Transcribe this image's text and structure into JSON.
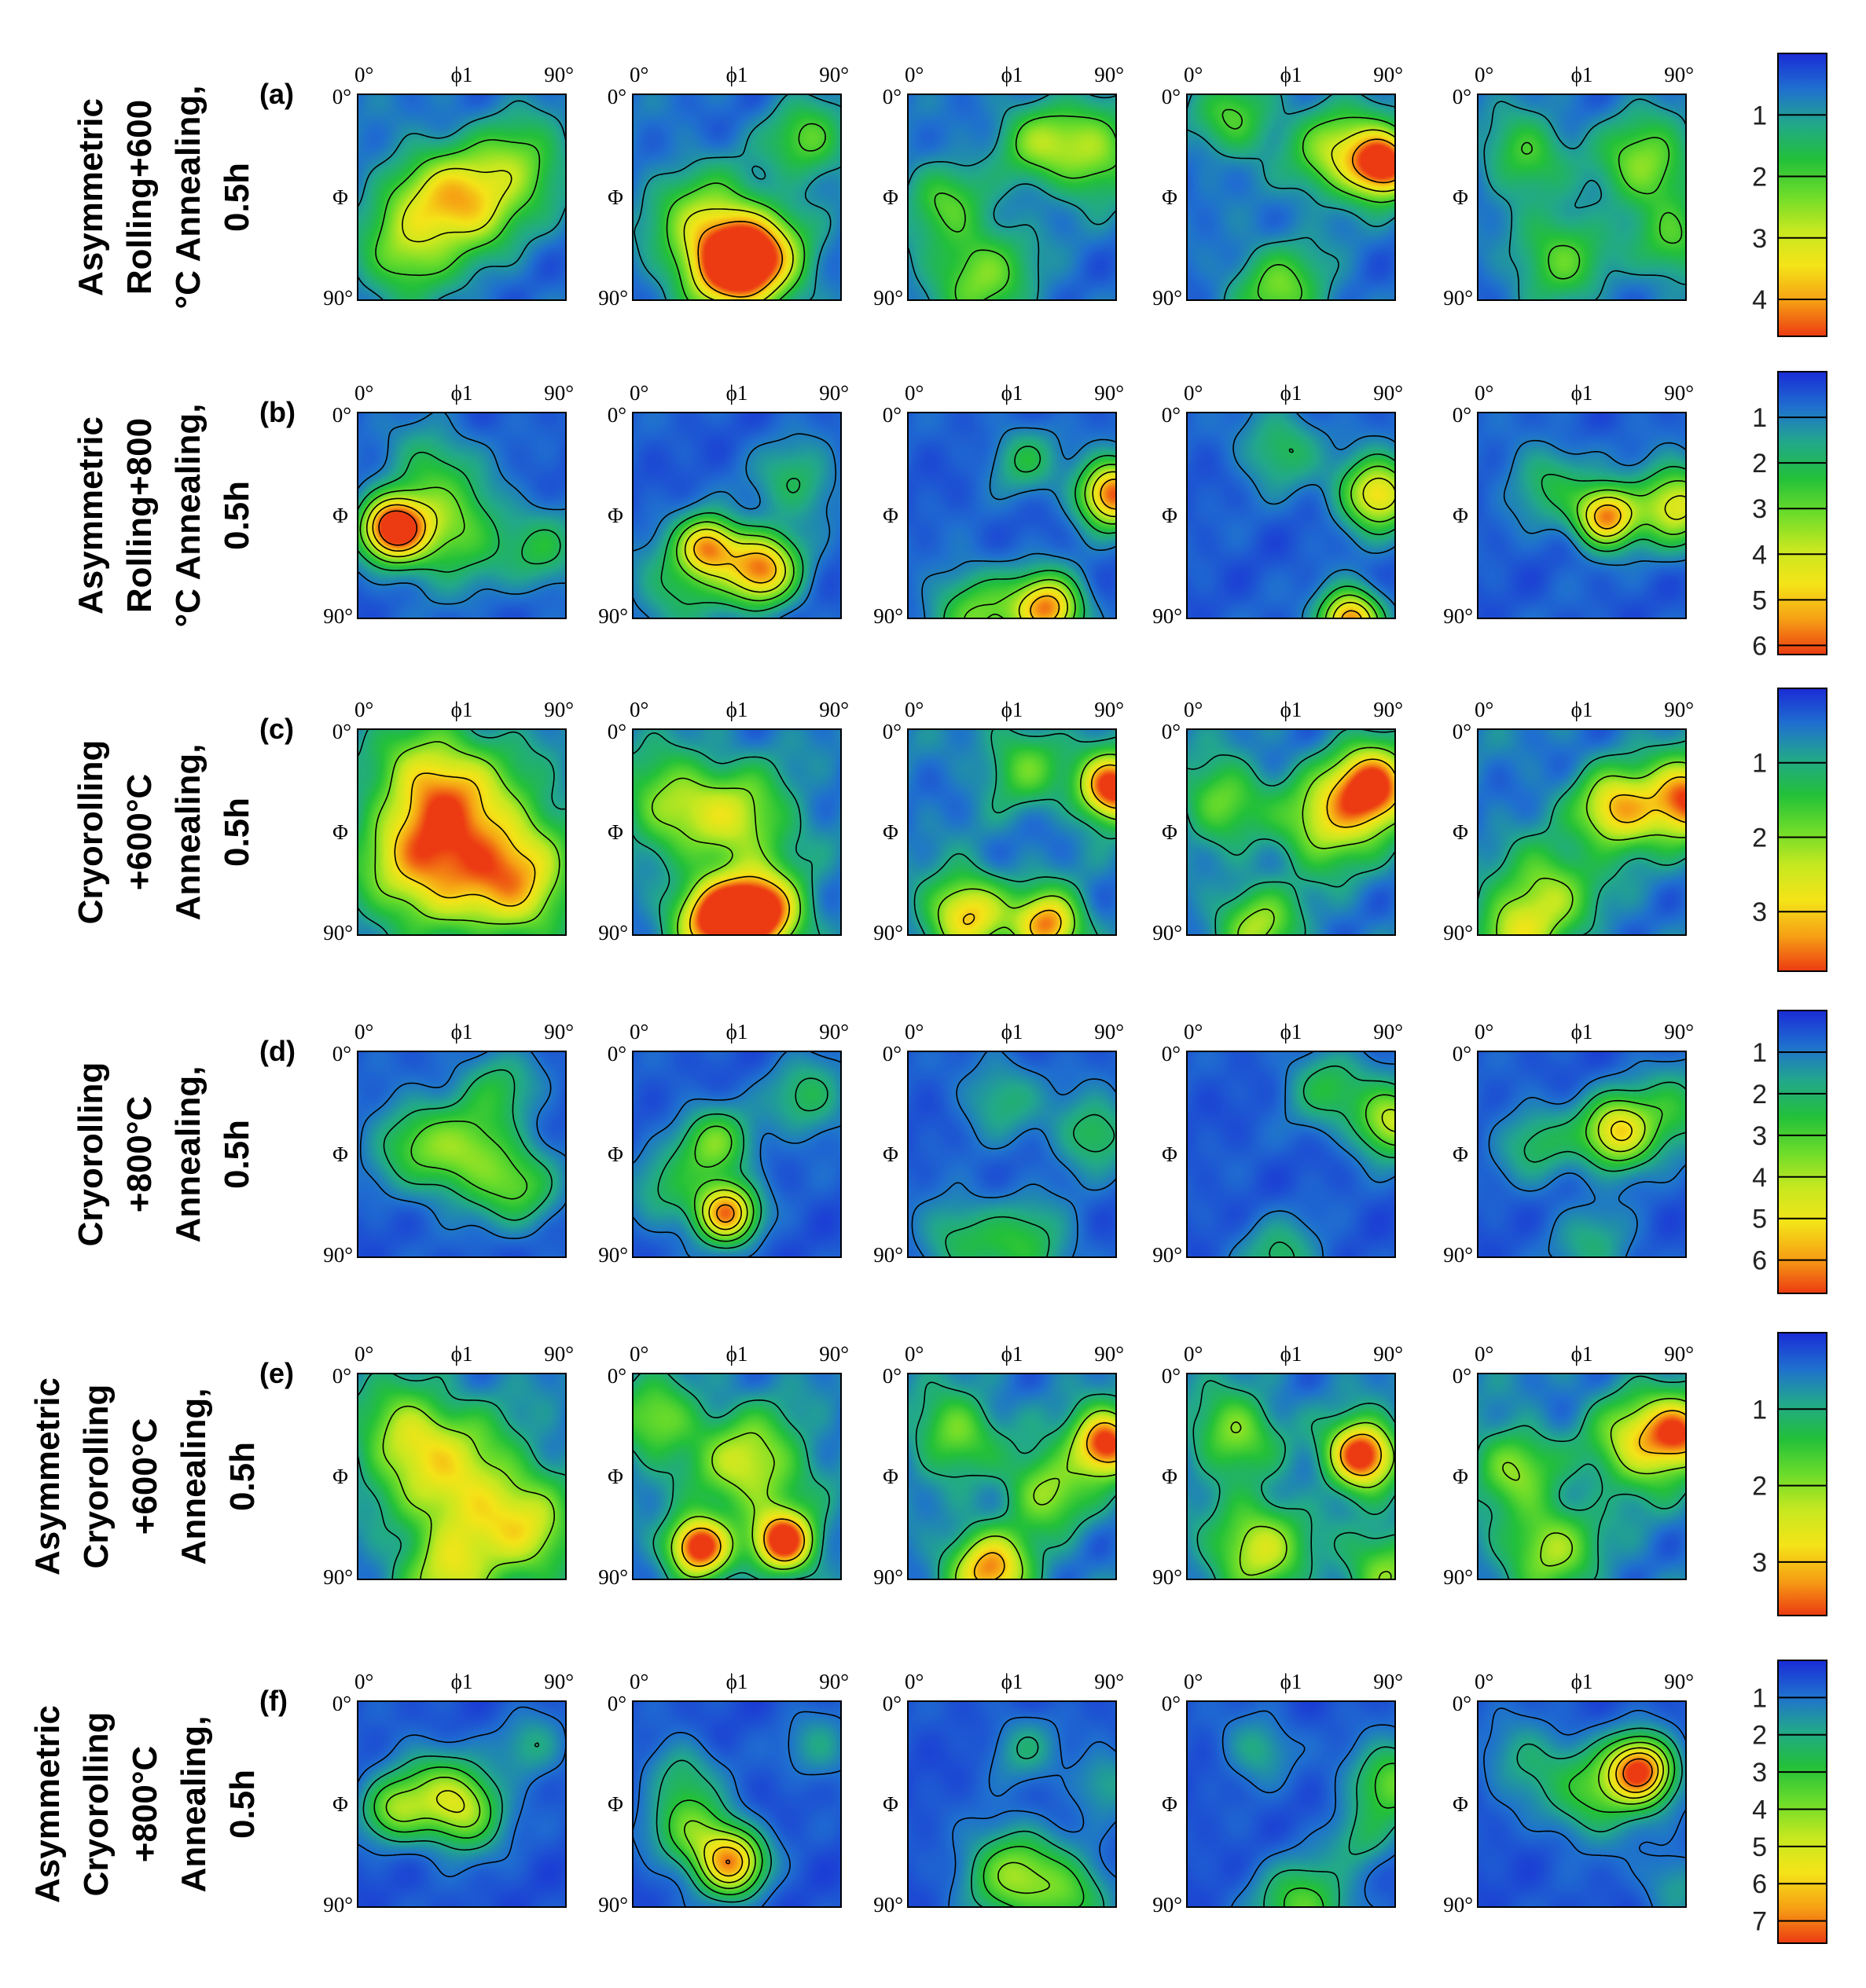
{
  "figure": {
    "description_free": true,
    "axis_labels": {
      "top_left": "0°",
      "top_mid": "ϕ1",
      "top_right": "90°",
      "left_top": "0°",
      "left_mid": "Φ",
      "left_bottom": "90°"
    }
  },
  "chart_data": {
    "type": "heatmap",
    "x_axis": {
      "label": "ϕ1",
      "range": [
        0,
        90
      ],
      "ticks": [
        "0°",
        "90°"
      ]
    },
    "y_axis": {
      "label": "Φ",
      "range": [
        0,
        90
      ],
      "ticks": [
        "0°",
        "90°"
      ]
    },
    "colormap": [
      "#1a2bd6",
      "#1f6fd0",
      "#22a88a",
      "#22c03a",
      "#6bdc2a",
      "#c6e820",
      "#f4e418",
      "#f6a014",
      "#ec3a12"
    ],
    "rows": [
      {
        "panel": "(a)",
        "label_lines": [
          "Asymmetric",
          "Rolling+600",
          "°C Annealing,",
          "0.5h"
        ],
        "colorbar_max": 4.6,
        "colorbar_ticks": [
          "1",
          "2",
          "3",
          "4"
        ],
        "panels": [
          {
            "peaks": [
              [
                32,
                45,
                1.9,
                16
              ],
              [
                50,
                48,
                2.0,
                14
              ],
              [
                20,
                70,
                1.7,
                14
              ],
              [
                70,
                30,
                1.7,
                14
              ]
            ]
          },
          {
            "peaks": [
              [
                42,
                75,
                3.6,
                14
              ],
              [
                55,
                70,
                2.6,
                14
              ],
              [
                30,
                55,
                1.8,
                16
              ],
              [
                75,
                20,
                1.6,
                12
              ]
            ]
          },
          {
            "peaks": [
              [
                80,
                25,
                2.0,
                14
              ],
              [
                30,
                78,
                1.8,
                16
              ],
              [
                55,
                20,
                1.6,
                12
              ],
              [
                15,
                45,
                1.3,
                12
              ]
            ]
          },
          {
            "peaks": [
              [
                85,
                30,
                4.3,
                10
              ],
              [
                65,
                25,
                2.2,
                14
              ],
              [
                40,
                85,
                1.7,
                14
              ],
              [
                20,
                10,
                1.5,
                12
              ]
            ]
          },
          {
            "peaks": [
              [
                72,
                30,
                2.0,
                14
              ],
              [
                35,
                70,
                1.6,
                14
              ],
              [
                20,
                25,
                1.5,
                12
              ],
              [
                85,
                65,
                1.4,
                12
              ]
            ]
          }
        ]
      },
      {
        "panel": "(b)",
        "label_lines": [
          "Asymmetric",
          "Rolling+800",
          "°C Annealing,",
          "0.5h"
        ],
        "colorbar_max": 6.2,
        "colorbar_ticks": [
          "1",
          "2",
          "3",
          "4",
          "5",
          "6"
        ],
        "panels": [
          {
            "peaks": [
              [
                15,
                50,
                6.0,
                10
              ],
              [
                40,
                50,
                2.6,
                16
              ],
              [
                80,
                60,
                1.5,
                12
              ],
              [
                30,
                20,
                1.3,
                12
              ]
            ]
          },
          {
            "peaks": [
              [
                32,
                58,
                4.4,
                9
              ],
              [
                55,
                68,
                5.0,
                11
              ],
              [
                70,
                30,
                1.5,
                12
              ],
              [
                20,
                75,
                1.6,
                14
              ]
            ]
          },
          {
            "peaks": [
              [
                88,
                35,
                5.5,
                10
              ],
              [
                60,
                85,
                5.0,
                10
              ],
              [
                30,
                88,
                2.4,
                14
              ],
              [
                50,
                20,
                1.5,
                10
              ]
            ]
          },
          {
            "peaks": [
              [
                82,
                35,
                4.3,
                11
              ],
              [
                70,
                90,
                5.2,
                9
              ],
              [
                40,
                15,
                1.6,
                12
              ]
            ]
          },
          {
            "peaks": [
              [
                55,
                45,
                5.1,
                9
              ],
              [
                85,
                40,
                3.8,
                12
              ],
              [
                30,
                30,
                1.5,
                12
              ]
            ]
          }
        ]
      },
      {
        "panel": "(c)",
        "label_lines": [
          "Cryorolling",
          "+600°C",
          "Annealing,",
          "0.5h"
        ],
        "colorbar_max": 3.8,
        "colorbar_ticks": [
          "1",
          "2",
          "3"
        ],
        "panels": [
          {
            "peaks": [
              [
                50,
                45,
                2.2,
                22
              ],
              [
                25,
                60,
                1.9,
                18
              ],
              [
                70,
                70,
                1.8,
                16
              ],
              [
                30,
                20,
                1.7,
                16
              ]
            ]
          },
          {
            "peaks": [
              [
                55,
                80,
                3.7,
                12
              ],
              [
                35,
                82,
                3.3,
                12
              ],
              [
                45,
                40,
                1.8,
                16
              ],
              [
                15,
                30,
                1.5,
                14
              ]
            ]
          },
          {
            "peaks": [
              [
                88,
                25,
                3.8,
                10
              ],
              [
                60,
                85,
                3.0,
                10
              ],
              [
                25,
                80,
                2.5,
                12
              ],
              [
                50,
                15,
                1.2,
                12
              ]
            ]
          },
          {
            "peaks": [
              [
                80,
                25,
                3.6,
                12
              ],
              [
                60,
                40,
                2.0,
                14
              ],
              [
                30,
                85,
                1.6,
                12
              ],
              [
                15,
                30,
                1.4,
                12
              ]
            ]
          },
          {
            "peaks": [
              [
                90,
                30,
                3.3,
                12
              ],
              [
                60,
                35,
                2.6,
                12
              ],
              [
                30,
                70,
                1.6,
                14
              ],
              [
                15,
                90,
                1.7,
                12
              ]
            ]
          }
        ]
      },
      {
        "panel": "(d)",
        "label_lines": [
          "Cryorolling",
          "+800°C",
          "Annealing,",
          "0.5h"
        ],
        "colorbar_max": 6.8,
        "colorbar_ticks": [
          "1",
          "2",
          "3",
          "4",
          "5",
          "6"
        ],
        "panels": [
          {
            "peaks": [
              [
                50,
                45,
                2.6,
                14
              ],
              [
                25,
                40,
                2.1,
                14
              ],
              [
                70,
                60,
                2.0,
                12
              ],
              [
                60,
                15,
                1.6,
                12
              ]
            ]
          },
          {
            "peaks": [
              [
                40,
                70,
                5.6,
                9
              ],
              [
                35,
                40,
                2.8,
                11
              ],
              [
                75,
                20,
                1.7,
                12
              ],
              [
                15,
                60,
                1.5,
                12
              ]
            ]
          },
          {
            "peaks": [
              [
                80,
                35,
                1.9,
                12
              ],
              [
                50,
                85,
                2.0,
                14
              ],
              [
                20,
                80,
                1.5,
                12
              ],
              [
                40,
                20,
                1.4,
                12
              ]
            ]
          },
          {
            "peaks": [
              [
                88,
                30,
                3.8,
                11
              ],
              [
                60,
                15,
                1.8,
                12
              ],
              [
                40,
                90,
                1.6,
                12
              ]
            ]
          },
          {
            "peaks": [
              [
                60,
                35,
                4.6,
                11
              ],
              [
                85,
                25,
                2.0,
                12
              ],
              [
                25,
                40,
                1.6,
                12
              ],
              [
                50,
                85,
                1.3,
                12
              ]
            ]
          }
        ]
      },
      {
        "panel": "(e)",
        "label_lines": [
          "Asymmetric",
          "Cryorolling",
          "+600°C",
          "Annealing,",
          "0.5h"
        ],
        "colorbar_max": 3.7,
        "colorbar_ticks": [
          "1",
          "2",
          "3"
        ],
        "panels": [
          {
            "peaks": [
              [
                45,
                50,
                2.1,
                20
              ],
              [
                20,
                25,
                1.6,
                14
              ],
              [
                75,
                70,
                1.6,
                14
              ],
              [
                40,
                90,
                1.6,
                14
              ]
            ]
          },
          {
            "peaks": [
              [
                28,
                75,
                3.6,
                9
              ],
              [
                65,
                73,
                3.6,
                9
              ],
              [
                50,
                40,
                1.9,
                16
              ],
              [
                10,
                20,
                1.4,
                12
              ]
            ]
          },
          {
            "peaks": [
              [
                85,
                30,
                3.5,
                10
              ],
              [
                35,
                85,
                2.7,
                12
              ],
              [
                60,
                50,
                1.6,
                12
              ],
              [
                20,
                25,
                1.4,
                12
              ]
            ]
          },
          {
            "peaks": [
              [
                75,
                35,
                3.7,
                10
              ],
              [
                30,
                75,
                1.9,
                14
              ],
              [
                20,
                25,
                1.5,
                12
              ],
              [
                85,
                85,
                1.4,
                12
              ]
            ]
          },
          {
            "peaks": [
              [
                70,
                30,
                2.1,
                14
              ],
              [
                88,
                25,
                2.5,
                10
              ],
              [
                30,
                75,
                1.6,
                14
              ],
              [
                15,
                40,
                1.4,
                12
              ]
            ]
          }
        ]
      },
      {
        "panel": "(f)",
        "label_lines": [
          "Asymmetric",
          "Cryorolling",
          "+800°C",
          "Annealing,",
          "0.5h"
        ],
        "colorbar_max": 7.6,
        "colorbar_ticks": [
          "1",
          "2",
          "3",
          "4",
          "5",
          "6",
          "7"
        ],
        "panels": [
          {
            "peaks": [
              [
                45,
                47,
                4.0,
                12
              ],
              [
                15,
                47,
                3.0,
                10
              ],
              [
                30,
                35,
                1.8,
                12
              ],
              [
                75,
                20,
                1.4,
                10
              ]
            ]
          },
          {
            "peaks": [
              [
                42,
                70,
                5.8,
                10
              ],
              [
                25,
                55,
                3.0,
                12
              ],
              [
                20,
                30,
                1.5,
                10
              ],
              [
                80,
                20,
                1.3,
                10
              ]
            ]
          },
          {
            "peaks": [
              [
                45,
                75,
                3.5,
                14
              ],
              [
                70,
                85,
                2.5,
                12
              ],
              [
                50,
                20,
                1.4,
                10
              ],
              [
                85,
                35,
                1.4,
                10
              ]
            ]
          },
          {
            "peaks": [
              [
                88,
                35,
                3.2,
                12
              ],
              [
                50,
                90,
                3.0,
                14
              ],
              [
                30,
                20,
                1.5,
                10
              ],
              [
                75,
                60,
                1.4,
                10
              ]
            ]
          },
          {
            "peaks": [
              [
                70,
                30,
                6.8,
                10
              ],
              [
                50,
                40,
                2.6,
                14
              ],
              [
                20,
                25,
                1.5,
                12
              ],
              [
                85,
                80,
                1.3,
                10
              ]
            ]
          }
        ]
      }
    ]
  }
}
